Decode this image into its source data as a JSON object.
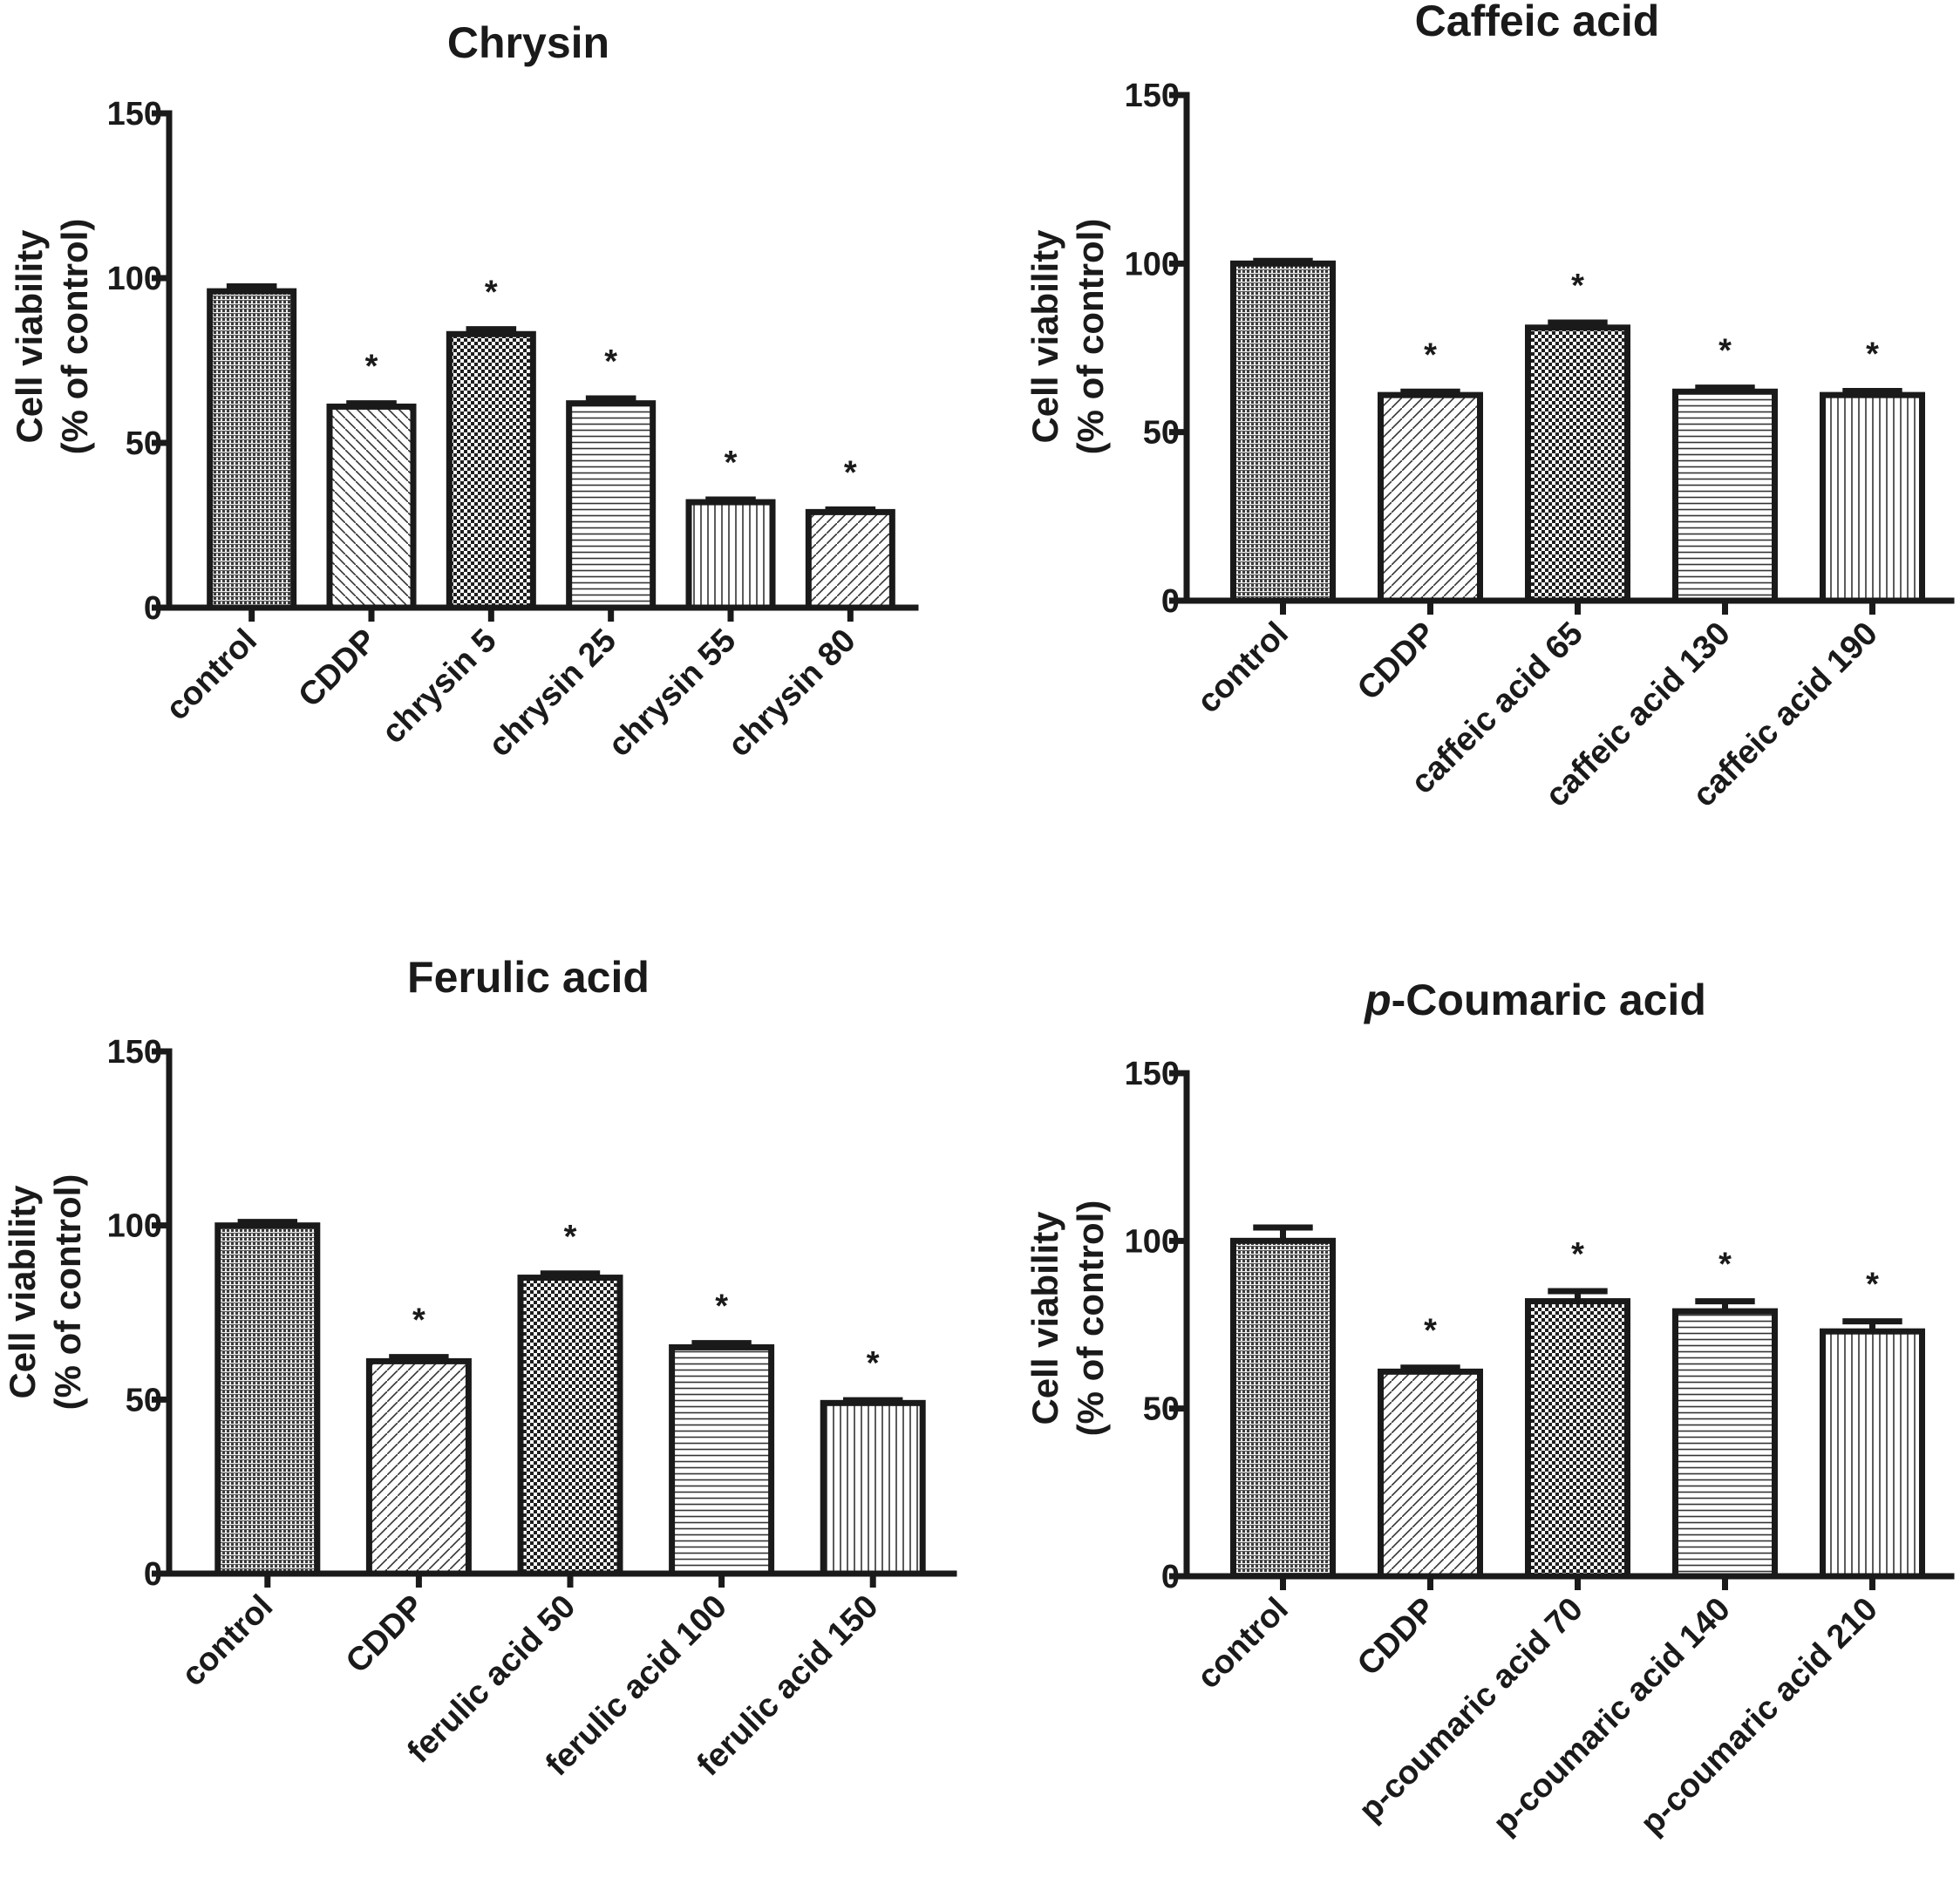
{
  "chart_data": [
    {
      "type": "bar",
      "title": "Chrysin",
      "title_italic_prefix": "",
      "ylabel_line1": "Cell viability",
      "ylabel_line2": "(% of control)",
      "xlabel": "",
      "ylim": [
        0,
        150
      ],
      "yticks": [
        "0",
        "50",
        "100",
        "150"
      ],
      "categories": [
        "control",
        "CDDP",
        "chrysin 5",
        "chrysin 25",
        "chrysin 55",
        "chrysin 80"
      ],
      "values": [
        96,
        61,
        83,
        62,
        32,
        29
      ],
      "errors": [
        1.5,
        1,
        1.5,
        1.5,
        0.8,
        0.8
      ],
      "significance": [
        "",
        "*",
        "*",
        "*",
        "*",
        "*"
      ],
      "patterns": [
        "dense",
        "diag-back",
        "checker",
        "horizontal",
        "vertical",
        "diag-fwd"
      ]
    },
    {
      "type": "bar",
      "title": "Caffeic acid",
      "title_italic_prefix": "",
      "ylabel_line1": "Cell viability",
      "ylabel_line2": "(% of control)",
      "xlabel": "",
      "ylim": [
        0,
        150
      ],
      "yticks": [
        "0",
        "50",
        "100",
        "150"
      ],
      "categories": [
        "control",
        "CDDP",
        "caffeic acid 65",
        "caffeic acid 130",
        "caffeic acid 190"
      ],
      "values": [
        100,
        61,
        81,
        62,
        61
      ],
      "errors": [
        0.8,
        1,
        1.5,
        1.2,
        1.2
      ],
      "significance": [
        "",
        "*",
        "*",
        "*",
        "*"
      ],
      "patterns": [
        "dense",
        "diag-fwd",
        "checker",
        "horizontal",
        "vertical"
      ]
    },
    {
      "type": "bar",
      "title": "Ferulic acid",
      "title_italic_prefix": "",
      "ylabel_line1": "Cell viability",
      "ylabel_line2": "(% of control)",
      "xlabel": "",
      "ylim": [
        0,
        150
      ],
      "yticks": [
        "0",
        "50",
        "100",
        "150"
      ],
      "categories": [
        "control",
        "CDDP",
        "ferulic acid 50",
        "ferulic acid 100",
        "ferulic acid 150"
      ],
      "values": [
        100,
        61,
        85,
        65,
        49
      ],
      "errors": [
        1,
        1.2,
        1.2,
        1.2,
        0.8
      ],
      "significance": [
        "",
        "*",
        "*",
        "*",
        "*"
      ],
      "patterns": [
        "dense",
        "diag-fwd",
        "checker",
        "horizontal",
        "vertical"
      ]
    },
    {
      "type": "bar",
      "title": "-Coumaric acid",
      "title_italic_prefix": "p",
      "ylabel_line1": "Cell viability",
      "ylabel_line2": "(% of control)",
      "xlabel": "",
      "ylim": [
        0,
        150
      ],
      "yticks": [
        "0",
        "50",
        "100",
        "150"
      ],
      "categories": [
        "control",
        "CDDP",
        "p-coumaric acid 70",
        "p-coumaric acid 140",
        "p-coumaric acid 210"
      ],
      "values": [
        100,
        61,
        82,
        79,
        73
      ],
      "errors": [
        4,
        1.2,
        3,
        3,
        3
      ],
      "significance": [
        "",
        "*",
        "*",
        "*",
        "*"
      ],
      "patterns": [
        "dense",
        "diag-fwd",
        "checker",
        "horizontal",
        "vertical"
      ]
    }
  ]
}
